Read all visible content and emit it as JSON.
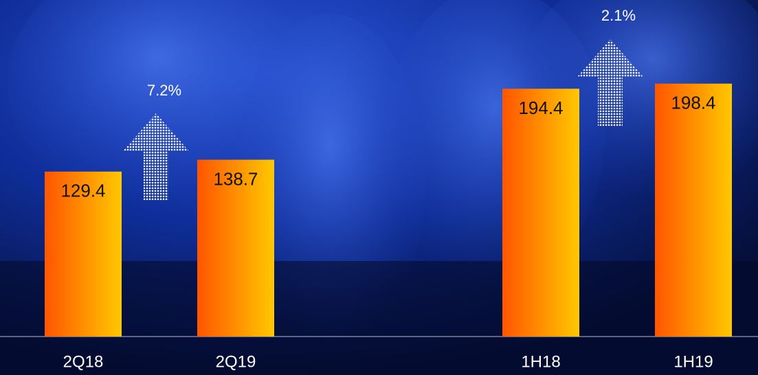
{
  "chart_data": {
    "type": "bar",
    "categories": [
      "2Q18",
      "2Q19",
      null,
      "1H18",
      "1H19"
    ],
    "values": [
      129.4,
      138.7,
      null,
      194.4,
      198.4
    ],
    "colors": [
      "#ff5500",
      "#ffc800"
    ],
    "ylim": [
      0,
      264
    ],
    "annotations": [
      "7.2%",
      "2.1%"
    ]
  }
}
